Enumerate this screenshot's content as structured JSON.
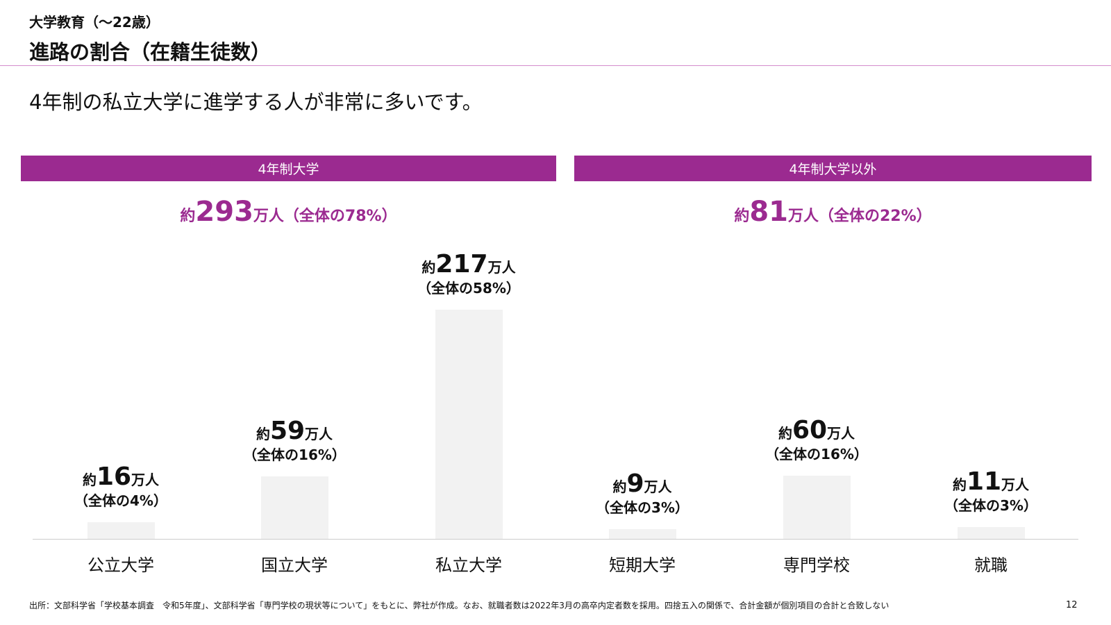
{
  "header": {
    "subtitle": "大学教育（〜22歳）",
    "title": "進路の割合（在籍生徒数）"
  },
  "lead": "4年制の私立大学に進学する人が非常に多いです。",
  "groups": [
    {
      "label": "4年制大学",
      "prefix": "約",
      "value": "293",
      "suffix": "万人（全体の78%）"
    },
    {
      "label": "4年制大学以外",
      "prefix": "約",
      "value": "81",
      "suffix": "万人（全体の22%）"
    }
  ],
  "chart_data": {
    "type": "bar",
    "categories": [
      "公立大学",
      "国立大学",
      "私立大学",
      "短期大学",
      "専門学校",
      "就職"
    ],
    "values": [
      16,
      59,
      217,
      9,
      60,
      11
    ],
    "unit": "万人",
    "share_labels": [
      "（全体の4%）",
      "（全体の16%）",
      "（全体の58%）",
      "（全体の3%）",
      "（全体の16%）",
      "（全体の3%）"
    ],
    "value_prefix": "約",
    "value_suffix": "万人",
    "bar_color": "#f2f2f2",
    "accent_color": "#9b2a90",
    "grid": false
  },
  "footnote": "出所：文部科学省「学校基本調査　令和5年度」、文部科学省「専門学校の現状等について」をもとに、弊社が作成。なお、就職者数は2022年3月の高卒内定者数を採用。四捨五入の関係で、合計金額が個別項目の合計と合致しない",
  "page_number": "12"
}
